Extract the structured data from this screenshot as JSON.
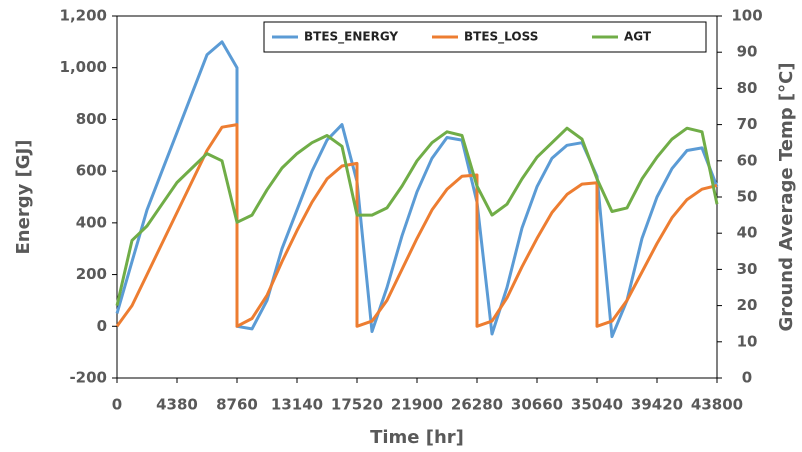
{
  "chart_data": {
    "type": "line",
    "x_label": "Time [hr]",
    "y_label": "Energy [GJ]",
    "y2_label": "Ground Average Temp [°C]",
    "x": [
      0,
      1095,
      2190,
      3285,
      4380,
      5475,
      6570,
      7665,
      8760,
      8760,
      9855,
      10950,
      12045,
      13140,
      14235,
      15330,
      16425,
      17520,
      17520,
      18615,
      19710,
      20805,
      21900,
      22995,
      24090,
      25185,
      26280,
      26280,
      27375,
      28470,
      29565,
      30660,
      31755,
      32850,
      33945,
      35040,
      35040,
      36135,
      37230,
      38325,
      39420,
      40515,
      41610,
      42705,
      43800
    ],
    "series": [
      {
        "name": "BTES_ENERGY",
        "color": "#5b9bd5",
        "values": [
          50,
          250,
          450,
          600,
          750,
          900,
          1050,
          1100,
          1000,
          0,
          -10,
          100,
          300,
          450,
          600,
          720,
          780,
          560,
          560,
          -20,
          150,
          350,
          520,
          650,
          730,
          720,
          480,
          480,
          -30,
          150,
          380,
          540,
          650,
          700,
          710,
          580,
          580,
          -40,
          100,
          340,
          500,
          610,
          680,
          690,
          540
        ]
      },
      {
        "name": "BTES_LOSS",
        "color": "#ed7d31",
        "values": [
          0,
          80,
          200,
          320,
          440,
          560,
          680,
          770,
          780,
          0,
          30,
          120,
          250,
          370,
          480,
          570,
          620,
          630,
          0,
          20,
          100,
          220,
          340,
          450,
          530,
          580,
          585,
          0,
          20,
          110,
          230,
          340,
          440,
          510,
          550,
          555,
          0,
          20,
          100,
          210,
          320,
          420,
          490,
          530,
          545
        ]
      },
      {
        "name": "AGT",
        "color": "#70ad47",
        "axis": "y2",
        "values": [
          20,
          38,
          42,
          48,
          54,
          58,
          62,
          60,
          43,
          43,
          45,
          52,
          58,
          62,
          65,
          67,
          64,
          45,
          45,
          45,
          47,
          53,
          60,
          65,
          68,
          67,
          53,
          53,
          45,
          48,
          55,
          61,
          65,
          69,
          66,
          55,
          55,
          46,
          47,
          55,
          61,
          66,
          69,
          68,
          48
        ]
      }
    ],
    "xlim": [
      0,
      43800
    ],
    "xticks": [
      0,
      4380,
      8760,
      13140,
      17520,
      21900,
      26280,
      30660,
      35040,
      39420,
      43800
    ],
    "ylim": [
      -200,
      1200
    ],
    "yticks": [
      -200,
      0,
      200,
      400,
      600,
      800,
      {
        "value": 1000,
        "label": "1,000"
      },
      {
        "value": 1200,
        "label": "1,200"
      }
    ],
    "y2lim": [
      0,
      100
    ],
    "y2ticks": [
      0,
      10,
      20,
      30,
      40,
      50,
      60,
      70,
      80,
      90,
      100
    ],
    "grid": false,
    "legend": "upper right"
  }
}
